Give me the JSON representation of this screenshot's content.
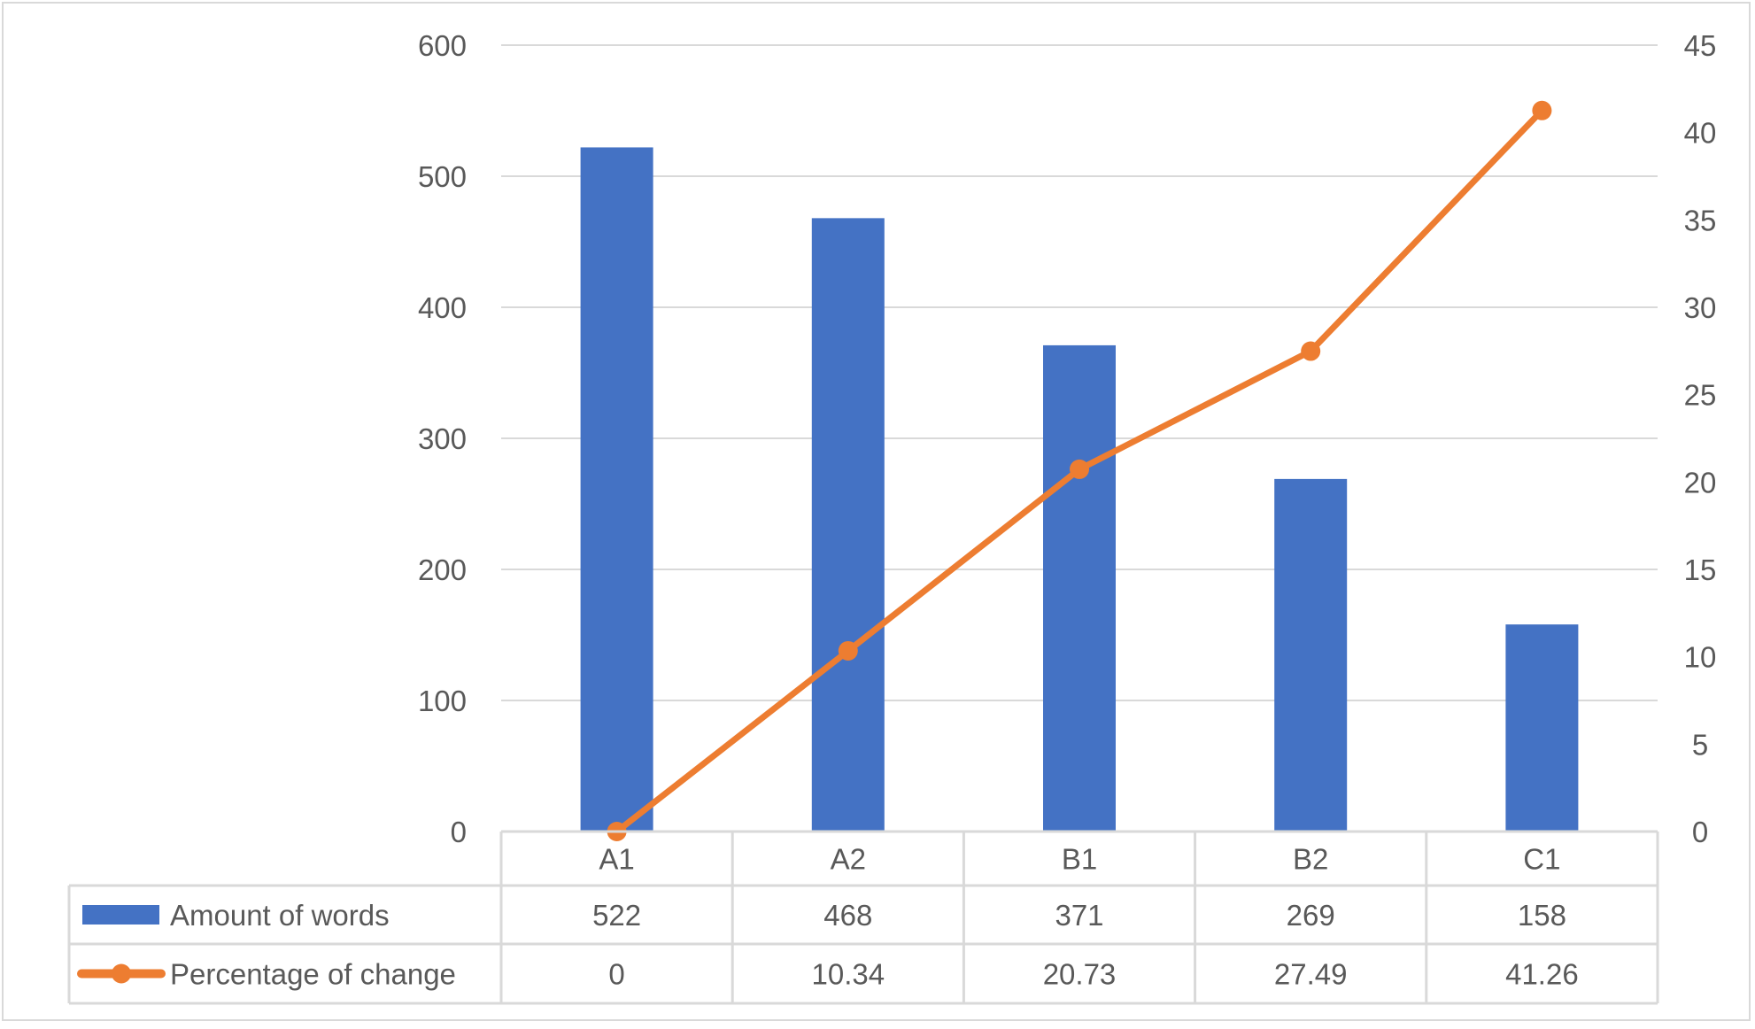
{
  "chart_data": {
    "type": "bar+line",
    "title": "",
    "categories": [
      "A1",
      "A2",
      "B1",
      "B2",
      "C1"
    ],
    "series": [
      {
        "name": "Amount of words",
        "type": "bar",
        "axis": "left",
        "color": "#4472C4",
        "values": [
          522,
          468,
          371,
          269,
          158
        ]
      },
      {
        "name": "Percentage of change",
        "type": "line",
        "axis": "right",
        "color": "#ED7D31",
        "marker": "circle",
        "values": [
          0,
          10.34,
          20.73,
          27.49,
          41.26
        ]
      }
    ],
    "y_left": {
      "label": "",
      "min": 0,
      "max": 600,
      "step": 100,
      "ticks": [
        "0",
        "100",
        "200",
        "300",
        "400",
        "500",
        "600"
      ]
    },
    "y_right": {
      "label": "",
      "min": 0,
      "max": 45,
      "step": 5,
      "ticks": [
        "0",
        "5",
        "10",
        "15",
        "20",
        "25",
        "30",
        "35",
        "40",
        "45"
      ]
    },
    "xlabel": "",
    "grid": true,
    "legend_position": "data-table",
    "data_table": {
      "header": [
        "A1",
        "A2",
        "B1",
        "B2",
        "C1"
      ],
      "rows": [
        {
          "label": "Amount of words",
          "cells": [
            "522",
            "468",
            "371",
            "269",
            "158"
          ]
        },
        {
          "label": "Percentage of change",
          "cells": [
            "0",
            "10.34",
            "20.73",
            "27.49",
            "41.26"
          ]
        }
      ]
    }
  },
  "colors": {
    "bar": "#4472C4",
    "line": "#ED7D31",
    "grid": "#d9d9d9",
    "text": "#595959"
  }
}
